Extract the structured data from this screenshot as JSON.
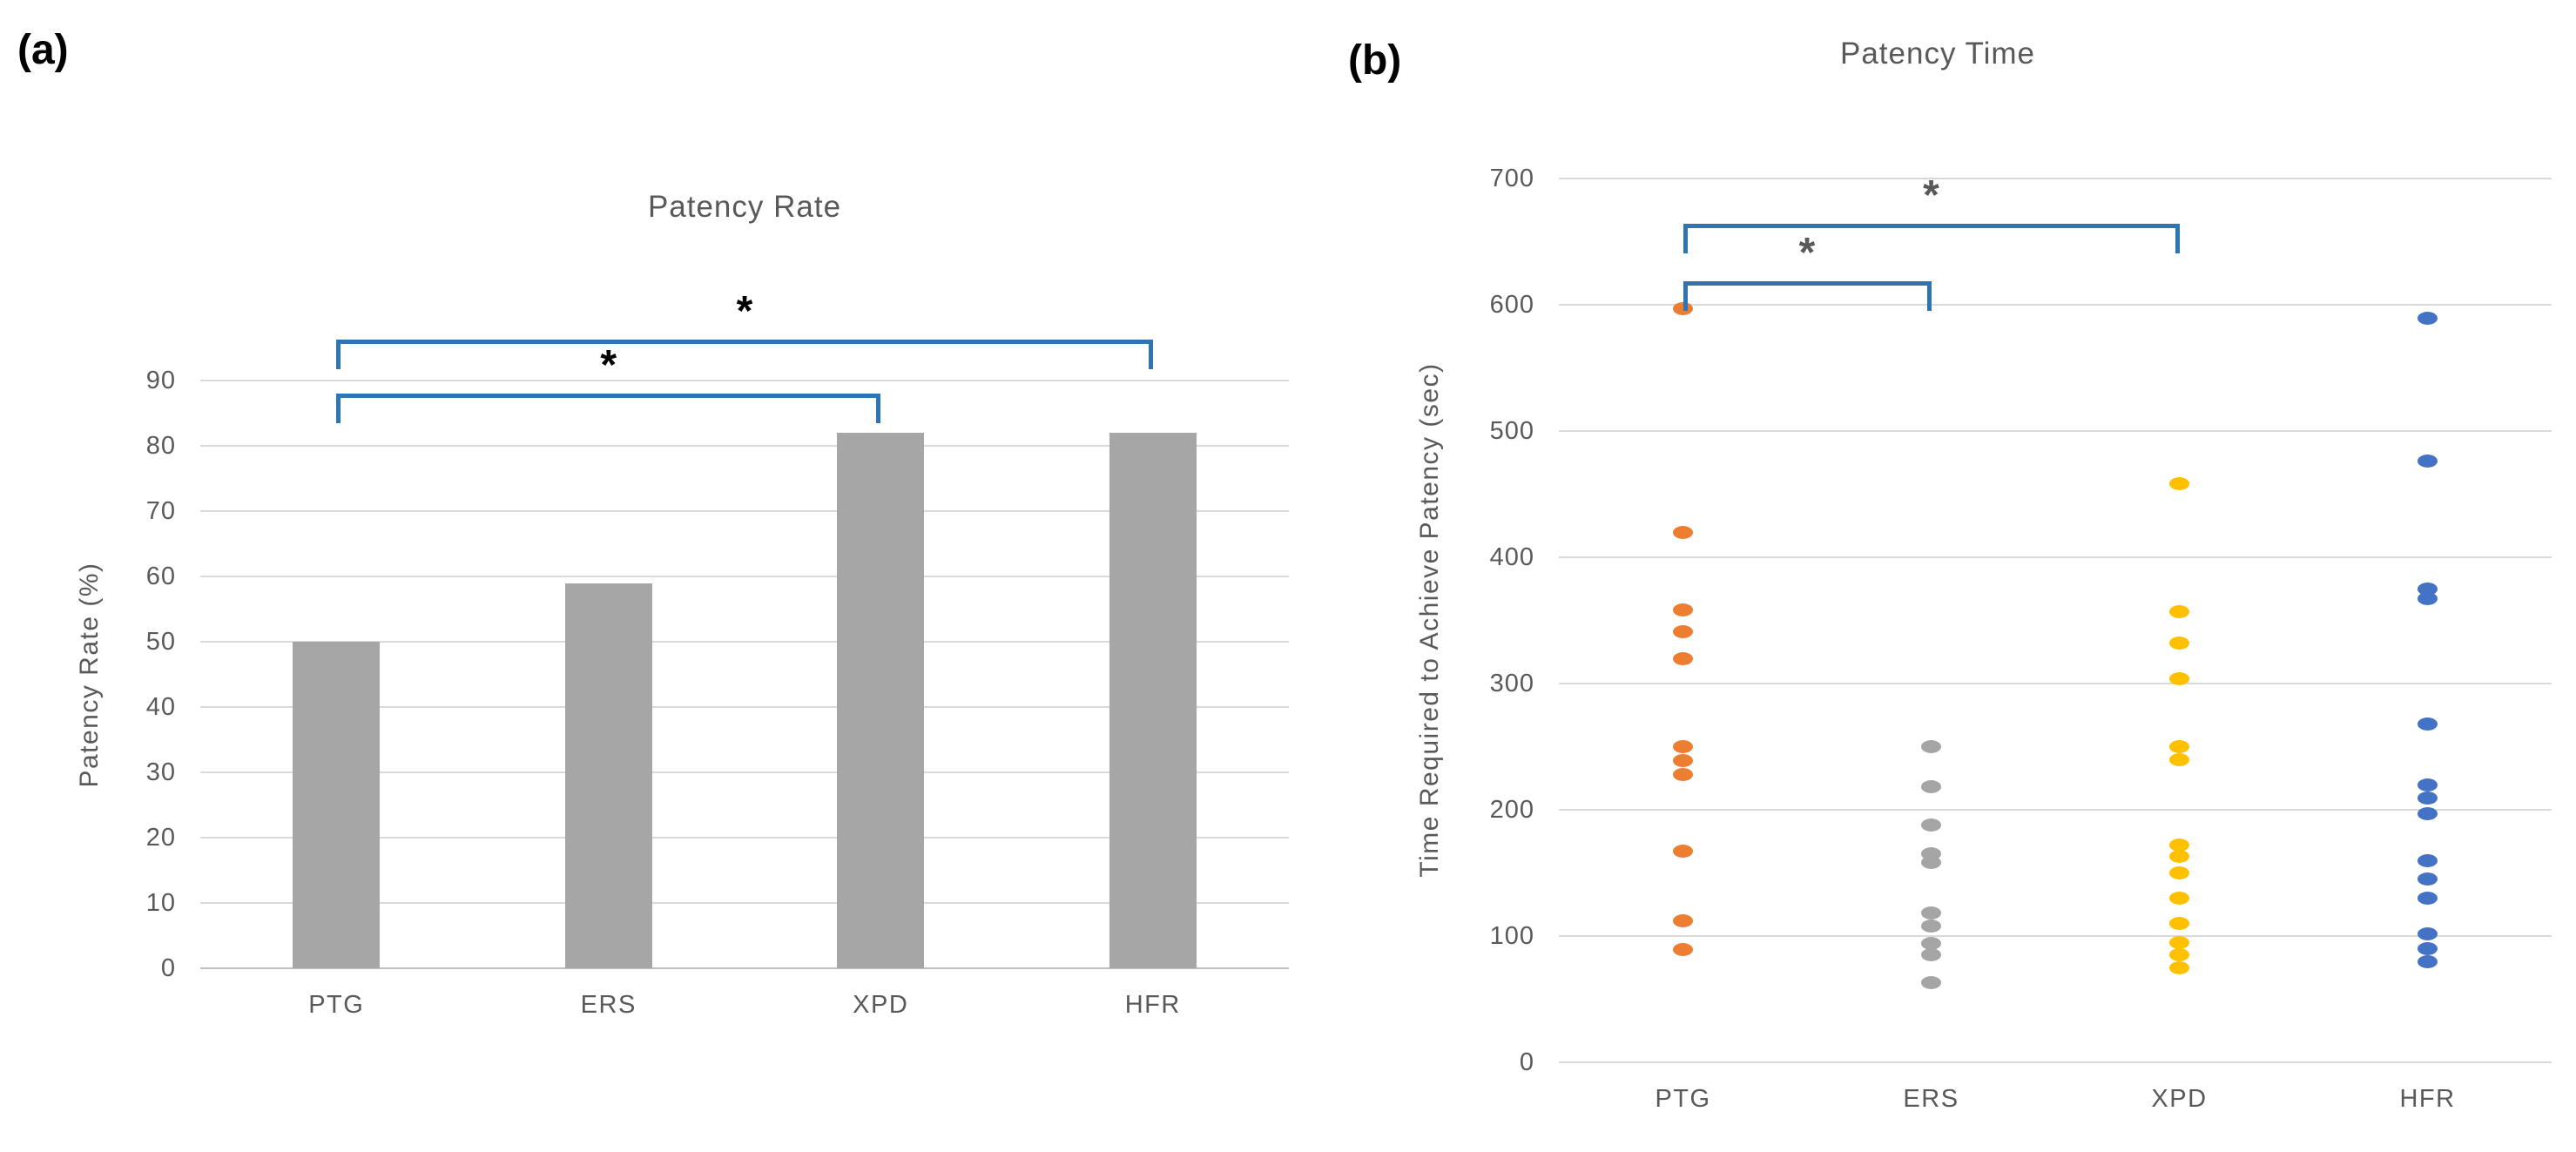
{
  "figure": {
    "background": "#ffffff",
    "bracket_color": "#2E75B6",
    "gridline_color": "#D9D9D9",
    "axis_line_color": "#BFBFBF",
    "text_color": "#595959"
  },
  "chart_data": [
    {
      "type": "bar",
      "panel_label": "(a)",
      "title": "Patency Rate",
      "xlabel": "",
      "ylabel": "Patency Rate (%)",
      "categories": [
        "PTG",
        "ERS",
        "XPD",
        "HFR"
      ],
      "values": [
        50,
        59,
        82,
        82
      ],
      "ylim": [
        0,
        90
      ],
      "ytick_step": 10,
      "yticks": [
        "0",
        "10",
        "20",
        "30",
        "40",
        "50",
        "60",
        "70",
        "80",
        "90"
      ],
      "grid": true,
      "legend": "none",
      "bar_color": "#A6A6A6",
      "significance": [
        {
          "from": "PTG",
          "to": "XPD",
          "label": "*"
        },
        {
          "from": "PTG",
          "to": "HFR",
          "label": "*"
        }
      ],
      "star_color": "#000000"
    },
    {
      "type": "scatter",
      "panel_label": "(b)",
      "title": "Patency Time",
      "xlabel": "",
      "ylabel": "Time Required to Achieve Patency (sec)",
      "categories": [
        "PTG",
        "ERS",
        "XPD",
        "HFR"
      ],
      "ylim": [
        0,
        700
      ],
      "ytick_step": 100,
      "yticks": [
        "0",
        "100",
        "200",
        "300",
        "400",
        "500",
        "600",
        "700"
      ],
      "grid": true,
      "legend": "none",
      "series": [
        {
          "name": "PTG",
          "color": "#ED7D31",
          "values": [
            597,
            420,
            358,
            341,
            320,
            250,
            239,
            228,
            167,
            112,
            89
          ]
        },
        {
          "name": "ERS",
          "color": "#A5A5A5",
          "values": [
            250,
            218,
            188,
            165,
            158,
            118,
            108,
            94,
            85,
            63
          ]
        },
        {
          "name": "XPD",
          "color": "#FFC000",
          "values": [
            458,
            357,
            332,
            304,
            250,
            240,
            172,
            163,
            150,
            130,
            110,
            95,
            85,
            75
          ]
        },
        {
          "name": "HFR",
          "color": "#4472C4",
          "values": [
            589,
            476,
            375,
            367,
            268,
            220,
            209,
            197,
            160,
            145,
            130,
            102,
            90,
            80
          ]
        }
      ],
      "significance": [
        {
          "from": "PTG",
          "to": "ERS",
          "label": "*"
        },
        {
          "from": "PTG",
          "to": "XPD",
          "label": "*"
        }
      ],
      "star_color": "#595959"
    }
  ]
}
